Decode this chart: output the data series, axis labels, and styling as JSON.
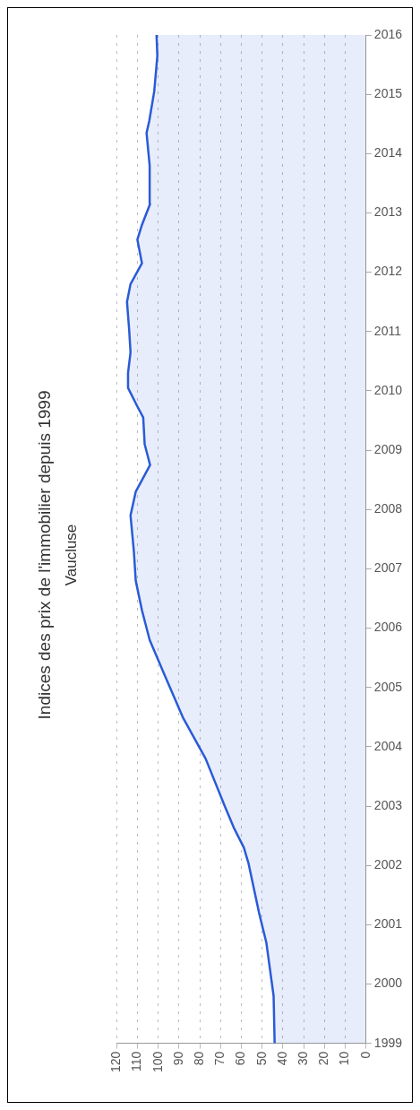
{
  "chart_data": {
    "type": "area",
    "orientation": "horizontal",
    "title": "Indices des prix de l'immobilier depuis 1999",
    "subtitle": "Vaucluse",
    "x": [
      1999,
      1999.8,
      2000.7,
      2001.2,
      2002.04,
      2002.3,
      2002.64,
      2003.0,
      2003.8,
      2004.5,
      2005.2,
      2005.8,
      2006.3,
      2006.8,
      2007.3,
      2007.9,
      2008.3,
      2008.75,
      2009.1,
      2009.55,
      2009.75,
      2010.05,
      2010.3,
      2010.65,
      2011.05,
      2011.5,
      2011.8,
      2012.15,
      2012.55,
      2012.8,
      2013.15,
      2013.8,
      2014.35,
      2014.55,
      2015.05,
      2015.65,
      2016
    ],
    "series": [
      {
        "color": "#2a5bd7",
        "values": [
          44,
          44.5,
          48,
          51.5,
          56.6,
          58.8,
          63.7,
          68,
          77.2,
          88.2,
          96.8,
          104.1,
          107.8,
          110.8,
          111.7,
          113.3,
          110.8,
          103.9,
          106.5,
          107.2,
          110.2,
          114.5,
          114.5,
          113.3,
          114,
          115,
          113.3,
          107.8,
          110,
          107.8,
          103.9,
          104.1,
          105.6,
          104.3,
          101.9,
          100.4,
          100.8
        ]
      }
    ],
    "ylim": [
      1999,
      2016
    ],
    "yticks": [
      1999,
      2000,
      2001,
      2002,
      2003,
      2004,
      2005,
      2006,
      2007,
      2008,
      2009,
      2010,
      2011,
      2012,
      2013,
      2014,
      2015,
      2016
    ],
    "xlim": [
      120,
      0
    ],
    "xticks": [
      0,
      10,
      20,
      30,
      40,
      50,
      60,
      70,
      80,
      90,
      100,
      110,
      120
    ],
    "grid": "x",
    "legend": false,
    "marker": "none",
    "line_style": "solid"
  }
}
